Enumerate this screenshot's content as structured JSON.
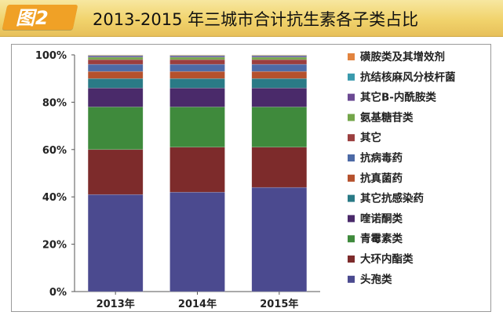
{
  "header": {
    "badge_label": "图2",
    "title": "2013-2015 年三城市合计抗生素各子类占比"
  },
  "colors": {
    "header_bg": "#f1d36c",
    "badge_bg": "#f0a126"
  },
  "chart_data": {
    "type": "bar",
    "stacked": true,
    "percent": true,
    "categories": [
      "2013年",
      "2014年",
      "2015年"
    ],
    "ylim": [
      0,
      100
    ],
    "yticks": [
      "0%",
      "20%",
      "40%",
      "60%",
      "80%",
      "100%"
    ],
    "grid": false,
    "legend_position": "right",
    "series": [
      {
        "name": "头孢类",
        "color": "#4b4a8f",
        "values": [
          41,
          42,
          44
        ]
      },
      {
        "name": "大环内酯类",
        "color": "#7d2b2b",
        "values": [
          19,
          19,
          17
        ]
      },
      {
        "name": "青霉素类",
        "color": "#3f8a3c",
        "values": [
          18,
          17,
          17
        ]
      },
      {
        "name": "喹诺酮类",
        "color": "#4a2a6a",
        "values": [
          8,
          8,
          8
        ]
      },
      {
        "name": "其它抗感染药",
        "color": "#2a7a86",
        "values": [
          4,
          4,
          4
        ]
      },
      {
        "name": "抗真菌药",
        "color": "#b5512d",
        "values": [
          3,
          3,
          3
        ]
      },
      {
        "name": "抗病毒药",
        "color": "#4d6aa6",
        "values": [
          3,
          3,
          3
        ]
      },
      {
        "name": "其它",
        "color": "#9b3f3f",
        "values": [
          2,
          2,
          2
        ]
      },
      {
        "name": "氨基糖苷类",
        "color": "#74a64a",
        "values": [
          1,
          1,
          1
        ]
      },
      {
        "name": "其它B-内酰胺类",
        "color": "#6b4a93",
        "values": [
          0.5,
          0.5,
          0.5
        ]
      },
      {
        "name": "抗结核麻风分枝杆菌",
        "color": "#3a9aad",
        "values": [
          0.3,
          0.3,
          0.3
        ]
      },
      {
        "name": "磺胺类及其增效剂",
        "color": "#e2843f",
        "values": [
          0.2,
          0.2,
          0.2
        ]
      }
    ]
  }
}
